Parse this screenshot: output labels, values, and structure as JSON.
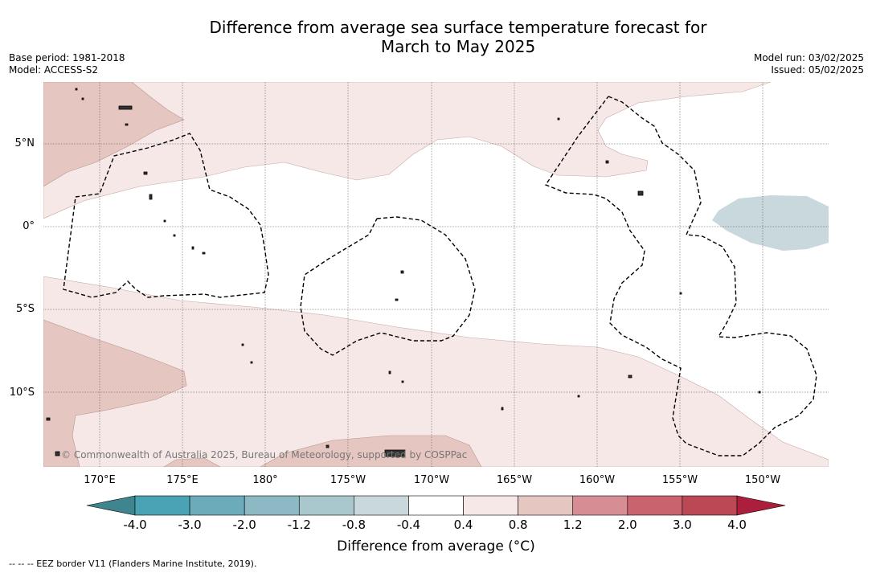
{
  "title": {
    "line1": "Difference from average sea surface temperature forecast for",
    "line2": "March to May 2025"
  },
  "meta": {
    "base_period": "Base period: 1981-2018",
    "model": "Model: ACCESS-S2",
    "model_run": "Model run: 03/02/2025",
    "issued": "Issued: 05/02/2025"
  },
  "axes": {
    "lat_labels": [
      "5°N",
      "0°",
      "5°S",
      "10°S"
    ],
    "lon_labels": [
      "170°E",
      "175°E",
      "180°",
      "175°W",
      "170°W",
      "165°W",
      "160°W",
      "155°W",
      "150°W"
    ]
  },
  "copyright": "© Commonwealth of Australia 2025, Bureau of Meteorology, supported by COSPPac",
  "colorbar": {
    "ticks": [
      "-4.0",
      "-3.0",
      "-2.0",
      "-1.2",
      "-0.8",
      "-0.4",
      "0.4",
      "0.8",
      "1.2",
      "2.0",
      "3.0",
      "4.0"
    ],
    "colors": [
      "#3f8590",
      "#4aa2b5",
      "#6cabba",
      "#8cb9c4",
      "#a9c8cd",
      "#c9d8dc",
      "#ffffff",
      "#f5e8e6",
      "#e6c6c1",
      "#d68e94",
      "#c9646f",
      "#bc4856",
      "#ab1f3d"
    ],
    "label": "Difference from average (°C)"
  },
  "legend": {
    "eez": "-- -- -- EEZ border V11 (Flanders Marine Institute, 2019)."
  }
}
